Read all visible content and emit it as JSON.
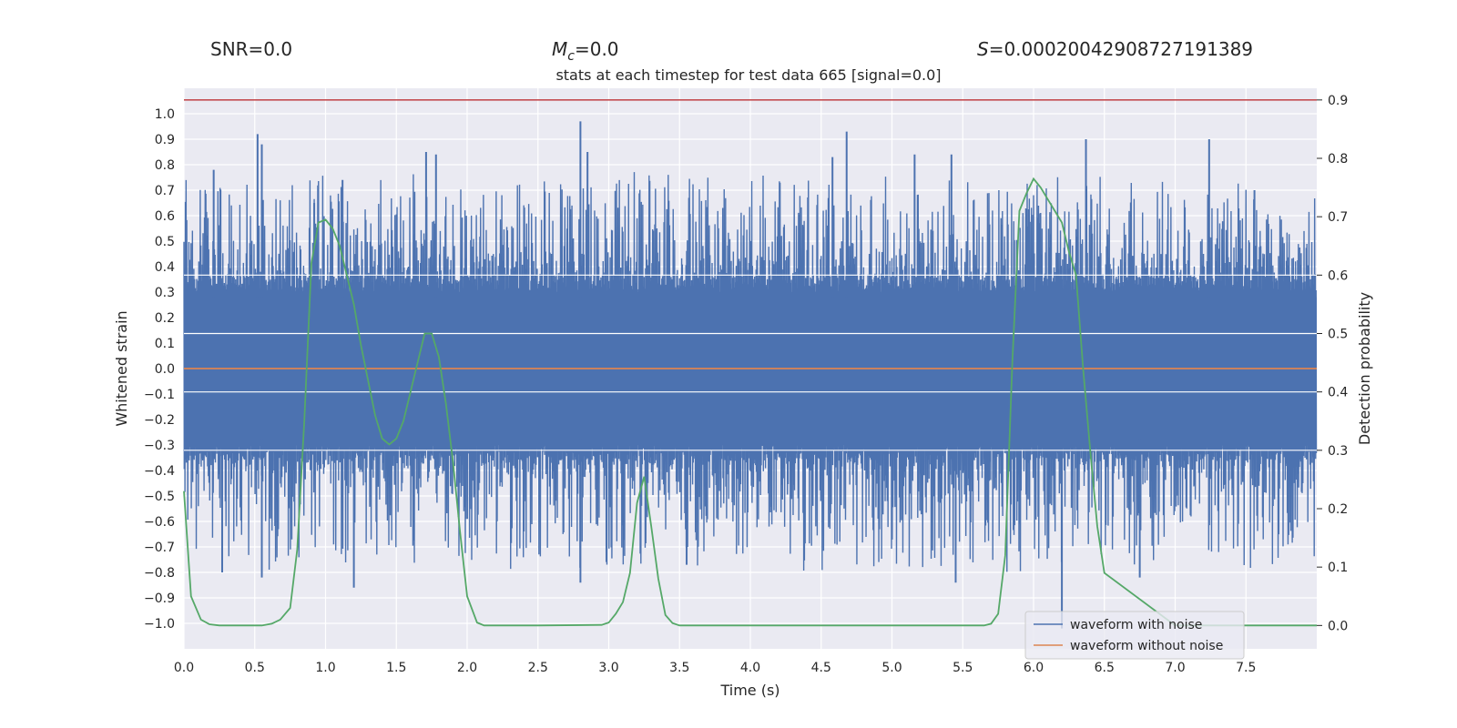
{
  "stats": {
    "snr": "SNR=0.0",
    "mc_symbol": "M",
    "mc_sub": "c",
    "mc_value": "=0.0",
    "s_symbol": "S",
    "s_value": "=0.00020042908727191389"
  },
  "chart_data": {
    "type": "line",
    "title": "stats at each timestep for test data 665 [signal=0.0]",
    "xlabel": "Time (s)",
    "ylabel_left": "Whitened strain",
    "ylabel_right": "Detection probability",
    "xlim": [
      0.0,
      8.0
    ],
    "ylim_left": [
      -1.1,
      1.1
    ],
    "ylim_right": [
      -0.04,
      0.92
    ],
    "x_ticks": [
      "0.0",
      "0.5",
      "1.0",
      "1.5",
      "2.0",
      "2.5",
      "3.0",
      "3.5",
      "4.0",
      "4.5",
      "5.0",
      "5.5",
      "6.0",
      "6.5",
      "7.0",
      "7.5"
    ],
    "y_ticks_left": [
      "1.0",
      "0.9",
      "0.8",
      "0.7",
      "0.6",
      "0.5",
      "0.4",
      "0.3",
      "0.2",
      "0.1",
      "0.0",
      "-0.1",
      "-0.2",
      "-0.3",
      "-0.4",
      "-0.5",
      "-0.6",
      "-0.7",
      "-0.8",
      "-0.9",
      "-1.0"
    ],
    "y_ticks_right": [
      "0.9",
      "0.8",
      "0.7",
      "0.6",
      "0.5",
      "0.4",
      "0.3",
      "0.2",
      "0.1",
      "0.0"
    ],
    "threshold": 0.9,
    "colors": {
      "noise": "#4c72b0",
      "clean": "#dd8452",
      "prob": "#55a868",
      "threshold": "#c44e52",
      "plot_bg": "#eaeaf2",
      "grid": "#ffffff"
    },
    "series": [
      {
        "name": "waveform with noise",
        "axis": "left",
        "generated": true,
        "envelope": 0.3,
        "peaks": [
          {
            "t": 0.52,
            "v": 0.92
          },
          {
            "t": 0.55,
            "v": 0.88
          },
          {
            "t": 0.21,
            "v": 0.78
          },
          {
            "t": 0.92,
            "v": 0.65
          },
          {
            "t": 1.12,
            "v": 0.74
          },
          {
            "t": 1.71,
            "v": 0.85
          },
          {
            "t": 1.78,
            "v": 0.84
          },
          {
            "t": 2.8,
            "v": 0.97
          },
          {
            "t": 2.85,
            "v": 0.85
          },
          {
            "t": 4.58,
            "v": 0.83
          },
          {
            "t": 4.68,
            "v": 0.93
          },
          {
            "t": 5.16,
            "v": 0.84
          },
          {
            "t": 5.42,
            "v": 0.84
          },
          {
            "t": 6.37,
            "v": 0.9
          },
          {
            "t": 7.24,
            "v": 0.9
          },
          {
            "t": 7.56,
            "v": 0.7
          },
          {
            "t": 0.55,
            "v": -0.82
          },
          {
            "t": 1.2,
            "v": -0.86
          },
          {
            "t": 2.8,
            "v": -0.84
          },
          {
            "t": 5.45,
            "v": -0.84
          },
          {
            "t": 6.2,
            "v": -1.02
          },
          {
            "t": 3.55,
            "v": -0.77
          },
          {
            "t": 6.75,
            "v": -0.82
          },
          {
            "t": 0.27,
            "v": -0.8
          }
        ]
      },
      {
        "name": "waveform without noise",
        "axis": "left",
        "x": [
          0.0,
          8.0
        ],
        "values": [
          0.0,
          0.0
        ]
      },
      {
        "name": "detection probability",
        "axis": "right",
        "x": [
          0.0,
          0.05,
          0.12,
          0.18,
          0.25,
          0.4,
          0.55,
          0.62,
          0.68,
          0.75,
          0.8,
          0.85,
          0.9,
          0.95,
          1.0,
          1.05,
          1.1,
          1.15,
          1.2,
          1.25,
          1.3,
          1.35,
          1.4,
          1.45,
          1.5,
          1.55,
          1.6,
          1.65,
          1.7,
          1.75,
          1.8,
          1.85,
          1.9,
          1.95,
          2.0,
          2.07,
          2.12,
          2.5,
          2.95,
          3.0,
          3.05,
          3.1,
          3.15,
          3.2,
          3.25,
          3.3,
          3.35,
          3.4,
          3.45,
          3.5,
          4.0,
          5.0,
          5.65,
          5.7,
          5.75,
          5.8,
          5.85,
          5.9,
          5.95,
          6.0,
          6.05,
          6.1,
          6.15,
          6.2,
          6.25,
          6.3,
          6.35,
          6.4,
          6.45,
          6.5,
          7.0,
          7.5,
          8.0
        ],
        "values": [
          0.23,
          0.05,
          0.01,
          0.002,
          0.0,
          0.0,
          0.0,
          0.003,
          0.01,
          0.03,
          0.13,
          0.35,
          0.62,
          0.69,
          0.695,
          0.68,
          0.65,
          0.6,
          0.55,
          0.48,
          0.42,
          0.36,
          0.32,
          0.31,
          0.32,
          0.35,
          0.4,
          0.45,
          0.5,
          0.5,
          0.46,
          0.38,
          0.28,
          0.16,
          0.05,
          0.005,
          0.0,
          0.0,
          0.001,
          0.005,
          0.02,
          0.04,
          0.09,
          0.21,
          0.255,
          0.17,
          0.08,
          0.018,
          0.004,
          0.0,
          0.0,
          0.0,
          0.0,
          0.003,
          0.02,
          0.12,
          0.45,
          0.71,
          0.74,
          0.765,
          0.75,
          0.73,
          0.71,
          0.69,
          0.64,
          0.6,
          0.44,
          0.3,
          0.17,
          0.09,
          0.0,
          0.0,
          0.0
        ]
      }
    ],
    "legend": {
      "position": "lower-right",
      "entries": [
        "waveform with noise",
        "waveform without noise"
      ]
    }
  }
}
